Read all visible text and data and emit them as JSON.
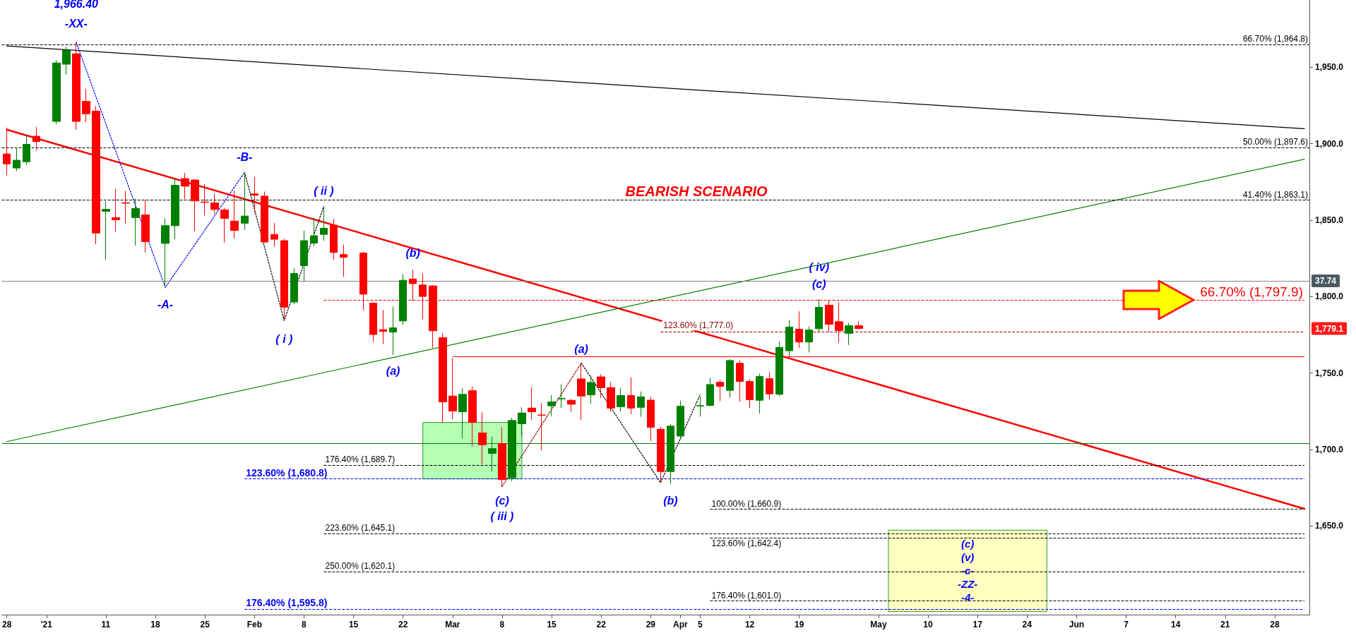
{
  "chart_data": {
    "type": "candlestick",
    "categories": [
      "28",
      null,
      null,
      null,
      "'21",
      null,
      null,
      null,
      null,
      null,
      "11",
      null,
      null,
      null,
      null,
      "18",
      null,
      null,
      null,
      null,
      "25",
      null,
      null,
      null,
      null,
      "Feb",
      null,
      null,
      null,
      null,
      "8",
      null,
      null,
      null,
      null,
      "15",
      null,
      null,
      null,
      null,
      "22",
      null,
      null,
      null,
      null,
      "Mar",
      null,
      null,
      null,
      null,
      "8",
      null,
      null,
      null,
      null,
      "15",
      null,
      null,
      null,
      null,
      "22",
      null,
      null,
      null,
      null,
      "29",
      null,
      null,
      "Apr",
      null,
      "5",
      null,
      null,
      null,
      null,
      "12",
      null,
      null,
      null,
      null,
      "19",
      null,
      null,
      null,
      null,
      null,
      null,
      null,
      "May",
      null,
      null,
      null,
      null,
      "10",
      null,
      null,
      null,
      null,
      "17",
      null,
      null,
      null,
      null,
      "24",
      null,
      null,
      null,
      null,
      "Jun",
      null,
      null,
      null,
      null,
      "7",
      null,
      null,
      null,
      null,
      "14",
      null,
      null,
      null,
      null,
      "21",
      null,
      null,
      null,
      null,
      "28",
      null,
      null,
      null
    ],
    "ohlc": [
      [
        1893.3,
        1910.5,
        1879.3,
        1886.8
      ],
      [
        1884.1,
        1897.6,
        1882.1,
        1889.2
      ],
      [
        1888.2,
        1905.2,
        1886.2,
        1899.6
      ],
      [
        1904.9,
        1911.0,
        1895.8,
        1901.4
      ],
      null,
      [
        1914.6,
        1954.6,
        1912.8,
        1952.8
      ],
      [
        1952.0,
        1963.4,
        1945.2,
        1961.0
      ],
      [
        1958.8,
        1966.4,
        1909.0,
        1914.6
      ],
      [
        1927.7,
        1936.0,
        1914.0,
        1919.6
      ],
      [
        1921.3,
        1924.6,
        1834.2,
        1841.6
      ],
      [
        1855.8,
        1862.3,
        1823.8,
        1857.1
      ],
      [
        1851.7,
        1870.5,
        1842.4,
        1850.3
      ],
      [
        1861.4,
        1869.2,
        1847.9,
        1861.1
      ],
      [
        1851.7,
        1864.1,
        1833.4,
        1857.6
      ],
      [
        1853.5,
        1863.1,
        1828.9,
        1836.0
      ],
      null,
      [
        1834.8,
        1851.2,
        1806.0,
        1846.4
      ],
      [
        1846.4,
        1877.8,
        1837.5,
        1872.8
      ],
      [
        1877.2,
        1880.9,
        1863.8,
        1872.2
      ],
      [
        1876.3,
        1876.8,
        1842.8,
        1862.6
      ],
      [
        1861.9,
        1873.7,
        1853.0,
        1861.6
      ],
      [
        1861.3,
        1867.2,
        1854.0,
        1857.0
      ],
      [
        1856.7,
        1858.0,
        1835.3,
        1851.2
      ],
      [
        1849.4,
        1869.5,
        1838.3,
        1843.3
      ],
      [
        1848.0,
        1881.3,
        1843.6,
        1852.7
      ],
      [
        1867.2,
        1878.3,
        1854.6,
        1866.3
      ],
      [
        1865.7,
        1868.7,
        1835.3,
        1835.7
      ],
      [
        1840.7,
        1848.2,
        1833.0,
        1837.5
      ],
      [
        1836.6,
        1837.8,
        1784.3,
        1793.1
      ],
      [
        1796.5,
        1818.5,
        1795.0,
        1815.2
      ],
      [
        1820.2,
        1843.2,
        1810.2,
        1836.6
      ],
      [
        1835.0,
        1851.7,
        1833.0,
        1839.8
      ],
      [
        1840.7,
        1859.1,
        1836.5,
        1844.7
      ],
      [
        1846.7,
        1850.9,
        1824.3,
        1828.9
      ],
      [
        1827.5,
        1834.0,
        1812.9,
        1825.7
      ],
      null,
      [
        1828.5,
        1829.3,
        1791.2,
        1801.6
      ],
      [
        1795.7,
        1796.3,
        1770.3,
        1775.2
      ],
      [
        1778.4,
        1791.2,
        1769.0,
        1777.3
      ],
      [
        1776.8,
        1793.5,
        1761.8,
        1779.6
      ],
      [
        1784.1,
        1814.8,
        1781.4,
        1810.7
      ],
      [
        1811.5,
        1817.6,
        1797.2,
        1808.5
      ],
      [
        1807.6,
        1815.3,
        1785.0,
        1800.1
      ],
      [
        1807.0,
        1807.5,
        1766.6,
        1777.7
      ],
      [
        1773.2,
        1776.0,
        1717.4,
        1731.2
      ],
      [
        1735.0,
        1759.7,
        1719.8,
        1725.2
      ],
      [
        1724.7,
        1740.2,
        1707.1,
        1736.1
      ],
      [
        1738.5,
        1741.3,
        1701.9,
        1717.7
      ],
      [
        1710.9,
        1724.4,
        1690.2,
        1703.1
      ],
      [
        1697.5,
        1708.4,
        1685.6,
        1700.6
      ],
      [
        1703.9,
        1714.6,
        1675.8,
        1680.4
      ],
      [
        1681.5,
        1720.7,
        1679.4,
        1719.0
      ],
      [
        1716.9,
        1727.6,
        1708.4,
        1723.9
      ],
      [
        1727.1,
        1740.7,
        1719.5,
        1724.7
      ],
      [
        1722.6,
        1730.4,
        1699.5,
        1722.4
      ],
      [
        1728.6,
        1735.6,
        1721.8,
        1731.2
      ],
      [
        1733.1,
        1742.6,
        1727.1,
        1733.3
      ],
      [
        1732.2,
        1733.0,
        1724.7,
        1729.6
      ],
      [
        1746.2,
        1756.5,
        1719.5,
        1735.0
      ],
      [
        1735.8,
        1748.3,
        1729.9,
        1743.9
      ],
      [
        1747.5,
        1749.2,
        1733.7,
        1740.5
      ],
      [
        1740.5,
        1744.2,
        1724.7,
        1727.1
      ],
      [
        1728.0,
        1740.2,
        1724.7,
        1735.3
      ],
      [
        1735.3,
        1747.2,
        1723.1,
        1727.1
      ],
      [
        1727.6,
        1737.9,
        1721.4,
        1734.5
      ],
      [
        1732.3,
        1734.5,
        1705.5,
        1714.5
      ],
      [
        1713.3,
        1714.9,
        1678.3,
        1685.6
      ],
      [
        1685.6,
        1716.6,
        1677.5,
        1715.3
      ],
      [
        1708.8,
        1732.1,
        1706.5,
        1728.3
      ],
      null,
      [
        1728.4,
        1734.5,
        1721.5,
        1728.7
      ],
      [
        1728.8,
        1746.8,
        1728.4,
        1742.5
      ],
      [
        1744.0,
        1745.5,
        1731.6,
        1741.3
      ],
      [
        1738.7,
        1759.2,
        1733.9,
        1758.2
      ],
      [
        1756.4,
        1758.2,
        1731.1,
        1744.5
      ],
      [
        1744.5,
        1746.0,
        1727.0,
        1732.6
      ],
      [
        1732.2,
        1749.7,
        1723.5,
        1747.8
      ],
      [
        1746.3,
        1750.6,
        1732.6,
        1736.4
      ],
      [
        1736.1,
        1770.6,
        1734.9,
        1766.8
      ],
      [
        1764.6,
        1784.8,
        1760.8,
        1780.1
      ],
      [
        1778.7,
        1790.4,
        1766.5,
        1770.3
      ],
      [
        1770.3,
        1780.5,
        1763.5,
        1778.2
      ],
      [
        1779.0,
        1798.3,
        1777.0,
        1793.0
      ],
      [
        1794.4,
        1797.9,
        1777.2,
        1781.9
      ],
      [
        1783.6,
        1796.2,
        1769.9,
        1777.8
      ],
      [
        1776.0,
        1782.8,
        1768.4,
        1781.0
      ],
      [
        1781.0,
        1783.9,
        1778.6,
        1779.1
      ],
      null,
      null,
      null,
      null,
      null,
      null,
      null,
      null,
      null,
      null,
      null,
      null,
      null,
      null,
      null,
      null,
      null,
      null,
      null,
      null,
      null,
      null,
      null,
      null,
      null,
      null,
      null,
      null,
      null,
      null,
      null,
      null,
      null,
      null,
      null,
      null,
      null,
      null,
      null,
      null,
      null,
      null,
      null,
      null,
      null
    ],
    "colors": [
      "#ff0000",
      "#008000",
      "#008000",
      "#ff0000",
      null,
      "#008000",
      "#008000",
      "#ff0000",
      "#ff0000",
      "#ff0000",
      "#008000",
      "#ff0000",
      "#ff0000",
      "#008000",
      "#ff0000",
      null,
      "#008000",
      "#008000",
      "#ff0000",
      "#ff0000",
      "#ff0000",
      "#ff0000",
      "#ff0000",
      "#ff0000",
      "#008000",
      "#ff0000",
      "#ff0000",
      "#ff0000",
      "#ff0000",
      "#008000",
      "#008000",
      "#008000",
      "#008000",
      "#ff0000",
      "#ff0000",
      null,
      "#ff0000",
      "#ff0000",
      "#ff0000",
      "#008000",
      "#008000",
      "#ff0000",
      "#ff0000",
      "#ff0000",
      "#ff0000",
      "#ff0000",
      "#008000",
      "#ff0000",
      "#ff0000",
      "#008000",
      "#ff0000",
      "#008000",
      "#008000",
      "#ff0000",
      "#ff0000",
      "#008000",
      "#008000",
      "#ff0000",
      "#ff0000",
      "#008000",
      "#ff0000",
      "#ff0000",
      "#008000",
      "#ff0000",
      "#008000",
      "#ff0000",
      "#ff0000",
      "#008000",
      "#008000",
      null,
      "#008000",
      "#008000",
      "#ff0000",
      "#008000",
      "#ff0000",
      "#ff0000",
      "#008000",
      "#ff0000",
      "#008000",
      "#008000",
      "#ff0000",
      "#008000",
      "#008000",
      "#ff0000",
      "#ff0000",
      "#008000",
      "#ff0000",
      null,
      null,
      null,
      null,
      null,
      null,
      null,
      null,
      null,
      null,
      null,
      null,
      null,
      null,
      null,
      null,
      null,
      null,
      null,
      null,
      null,
      null,
      null,
      null,
      null,
      null,
      null,
      null,
      null,
      null,
      null,
      null,
      null,
      null,
      null,
      null,
      null,
      null,
      null,
      null,
      null,
      null,
      null,
      null,
      null
    ],
    "series": [
      {
        "type": "line",
        "color": "#000000",
        "line_style": "solid",
        "values": [
          1963.9,
          null,
          null,
          null,
          null,
          null,
          null,
          null,
          null,
          null,
          null,
          null,
          null,
          null,
          null,
          null,
          null,
          null,
          null,
          null,
          null,
          null,
          null,
          null,
          null,
          null,
          null,
          null,
          null,
          null,
          null,
          null,
          null,
          null,
          null,
          null,
          null,
          null,
          null,
          null,
          null,
          null,
          null,
          null,
          null,
          null,
          null,
          null,
          null,
          null,
          null,
          null,
          null,
          null,
          null,
          null,
          null,
          null,
          null,
          null,
          null,
          null,
          null,
          null,
          null,
          null,
          null,
          null,
          null,
          null,
          null,
          null,
          null,
          null,
          null,
          null,
          null,
          null,
          null,
          null,
          null,
          null,
          null,
          null,
          null,
          null,
          null,
          null,
          null,
          null,
          null,
          null,
          null,
          null,
          null,
          null,
          null,
          null,
          null,
          null,
          null,
          null,
          null,
          null,
          null,
          null,
          null,
          null,
          null,
          null,
          null,
          null,
          null,
          null,
          null,
          null,
          null,
          null,
          null,
          null,
          null,
          null,
          null,
          null,
          null,
          null,
          null,
          null,
          null,
          null,
          null,
          1909.8
        ]
      },
      {
        "type": "line",
        "color": "#ff0000",
        "line_style": "solid",
        "values": [
          1909.2,
          null,
          null,
          null,
          null,
          null,
          null,
          null,
          null,
          null,
          null,
          null,
          null,
          null,
          null,
          null,
          null,
          null,
          null,
          null,
          null,
          null,
          null,
          null,
          null,
          null,
          null,
          null,
          null,
          null,
          null,
          null,
          null,
          null,
          null,
          null,
          null,
          null,
          null,
          null,
          null,
          null,
          null,
          null,
          null,
          null,
          null,
          null,
          null,
          null,
          null,
          null,
          null,
          null,
          null,
          null,
          null,
          null,
          null,
          null,
          null,
          null,
          null,
          null,
          null,
          null,
          null,
          null,
          null,
          null,
          null,
          null,
          null,
          null,
          null,
          null,
          null,
          null,
          null,
          null,
          null,
          null,
          null,
          null,
          null,
          null,
          null,
          null,
          null,
          null,
          null,
          null,
          null,
          null,
          null,
          null,
          null,
          null,
          null,
          null,
          null,
          null,
          null,
          null,
          null,
          null,
          null,
          null,
          null,
          null,
          null,
          null,
          null,
          null,
          null,
          null,
          null,
          null,
          null,
          null,
          null,
          null,
          null,
          null,
          null,
          null,
          null,
          null,
          null,
          null,
          null,
          1661.2
        ]
      },
      {
        "type": "line",
        "color": "#008000",
        "line_style": "solid",
        "values": [
          1705.2,
          null,
          null,
          null,
          null,
          null,
          null,
          null,
          null,
          null,
          null,
          null,
          null,
          null,
          null,
          null,
          null,
          null,
          null,
          null,
          null,
          null,
          null,
          null,
          null,
          null,
          null,
          null,
          null,
          null,
          null,
          null,
          null,
          null,
          null,
          null,
          null,
          null,
          null,
          null,
          null,
          null,
          null,
          null,
          null,
          null,
          null,
          null,
          null,
          null,
          null,
          null,
          null,
          null,
          null,
          null,
          null,
          null,
          null,
          null,
          null,
          null,
          null,
          null,
          null,
          null,
          null,
          null,
          null,
          null,
          null,
          null,
          null,
          null,
          null,
          null,
          null,
          null,
          null,
          null,
          null,
          null,
          null,
          null,
          null,
          null,
          null,
          null,
          null,
          null,
          null,
          null,
          null,
          null,
          null,
          null,
          null,
          null,
          null,
          null,
          null,
          null,
          null,
          null,
          null,
          null,
          null,
          null,
          null,
          null,
          null,
          null,
          null,
          null,
          null,
          null,
          null,
          null,
          null,
          null,
          null,
          null,
          null,
          null,
          null,
          null,
          null,
          null,
          null,
          null,
          null,
          1889.9
        ]
      },
      {
        "type": "line",
        "color": "#0000ff",
        "line_style": "dotted",
        "values": [
          null,
          null,
          null,
          null,
          null,
          null,
          null,
          1966.4,
          null,
          null,
          null,
          null,
          null,
          null,
          null,
          null,
          1806.0,
          null,
          null,
          null,
          null,
          null,
          null,
          null,
          1881.3,
          null,
          null,
          null,
          null,
          null,
          null,
          null,
          null,
          null,
          null,
          null,
          null,
          null,
          null,
          null,
          null,
          null,
          null,
          null,
          null,
          null,
          null,
          null,
          null,
          null,
          null,
          null,
          null,
          null,
          null,
          null,
          null,
          null,
          null,
          null,
          null,
          null,
          null,
          null,
          null,
          null,
          null,
          null,
          null,
          null,
          null,
          null,
          null,
          null,
          null,
          null,
          null,
          null,
          null,
          null,
          null,
          null,
          null,
          null,
          null,
          null,
          null,
          null,
          null,
          null,
          null,
          null,
          null,
          null,
          null,
          null,
          null,
          null,
          null,
          null,
          null,
          null,
          null,
          null,
          null,
          null,
          null,
          null,
          null,
          null,
          null,
          null,
          null,
          null,
          null,
          null,
          null,
          null,
          null,
          null,
          null,
          null,
          null,
          null,
          null,
          null,
          null,
          null,
          null,
          null,
          null,
          null
        ]
      },
      {
        "type": "line",
        "color": "#000000",
        "line_style": "dotted",
        "values": [
          null,
          null,
          null,
          null,
          null,
          null,
          null,
          null,
          null,
          null,
          null,
          null,
          null,
          null,
          null,
          null,
          null,
          null,
          null,
          null,
          null,
          null,
          null,
          null,
          1881.3,
          null,
          null,
          null,
          1784.3,
          null,
          null,
          null,
          1859.1,
          null,
          null,
          null,
          null,
          null,
          null,
          null,
          null,
          null,
          null,
          null,
          null,
          null,
          null,
          null,
          null,
          null,
          null,
          null,
          null,
          null,
          null,
          null,
          null,
          null,
          null,
          null,
          null,
          null,
          null,
          null,
          null,
          null,
          null,
          null,
          null,
          null,
          null,
          null,
          null,
          null,
          null,
          null,
          null,
          null,
          null,
          null,
          null,
          null,
          null,
          null,
          null,
          null,
          null,
          null,
          null,
          null,
          null,
          null,
          null,
          null,
          null,
          null,
          null,
          null,
          null,
          null,
          null,
          null,
          null,
          null,
          null,
          null,
          null,
          null,
          null,
          null,
          null,
          null,
          null,
          null,
          null,
          null,
          null,
          null,
          null,
          null,
          null,
          null,
          null,
          null,
          null,
          null,
          null,
          null,
          null,
          null,
          null,
          null
        ]
      },
      {
        "type": "line",
        "color": "#8b0000",
        "line_style": "dotted",
        "values": [
          null,
          null,
          null,
          null,
          null,
          null,
          null,
          null,
          null,
          null,
          null,
          null,
          null,
          null,
          null,
          null,
          null,
          null,
          null,
          null,
          null,
          null,
          null,
          null,
          null,
          null,
          null,
          null,
          null,
          null,
          null,
          null,
          null,
          null,
          null,
          null,
          null,
          null,
          null,
          null,
          null,
          null,
          null,
          null,
          null,
          null,
          null,
          null,
          null,
          null,
          1675.8,
          null,
          null,
          null,
          null,
          null,
          null,
          null,
          1756.5,
          null,
          null,
          null,
          null,
          null,
          null,
          null,
          null,
          null,
          null,
          null,
          null,
          null,
          null,
          null,
          null,
          null,
          null,
          null,
          null,
          null,
          null,
          null,
          null,
          null,
          null,
          null,
          null,
          null,
          null,
          null,
          null,
          null,
          null,
          null,
          null,
          null,
          null,
          null,
          null,
          null,
          null,
          null,
          null,
          null,
          null,
          null,
          null,
          null,
          null,
          null,
          null,
          null,
          null,
          null,
          null,
          null,
          null,
          null,
          null,
          null,
          null,
          null,
          null,
          null,
          null,
          null,
          null,
          null,
          null,
          null,
          null,
          null
        ]
      },
      {
        "type": "line",
        "color": "#000000",
        "line_style": "dotted",
        "values": [
          null,
          null,
          null,
          null,
          null,
          null,
          null,
          null,
          null,
          null,
          null,
          null,
          null,
          null,
          null,
          null,
          null,
          null,
          null,
          null,
          null,
          null,
          null,
          null,
          null,
          null,
          null,
          null,
          null,
          null,
          null,
          null,
          null,
          null,
          null,
          null,
          null,
          null,
          null,
          null,
          null,
          null,
          null,
          null,
          null,
          null,
          null,
          null,
          null,
          null,
          null,
          null,
          null,
          null,
          null,
          null,
          null,
          null,
          1756.5,
          null,
          null,
          null,
          null,
          null,
          null,
          null,
          1678.3,
          null,
          null,
          null,
          1736.0,
          null,
          null,
          null,
          null,
          null,
          null,
          null,
          null,
          null,
          null,
          null,
          null,
          null,
          null,
          null,
          null,
          null,
          null,
          null,
          null,
          null,
          null,
          null,
          null,
          null,
          null,
          null,
          null,
          null,
          null,
          null,
          null,
          null,
          null,
          null,
          null,
          null,
          null,
          null,
          null,
          null,
          null,
          null,
          null,
          null,
          null,
          null,
          null,
          null,
          null,
          null,
          null,
          null,
          null,
          null,
          null,
          null,
          null,
          null,
          null,
          null
        ]
      }
    ],
    "ylim": [
      1592,
      1994
    ],
    "yticks": [
      {
        "value": 1650,
        "label": "1,650.0"
      },
      {
        "value": 1700,
        "label": "1,700.0"
      },
      {
        "value": 1750,
        "label": "1,750.0"
      },
      {
        "value": 1800,
        "label": "1,800.0"
      },
      {
        "value": 1850,
        "label": "1,850.0"
      },
      {
        "value": 1900,
        "label": "1,900.0"
      },
      {
        "value": 1950,
        "label": "1,950.0"
      }
    ],
    "ref_lines": [
      {
        "axis": "y",
        "value": 1964.8,
        "label": "66.70% (1,964.8)",
        "color": "#000000",
        "line_style": "dashed"
      },
      {
        "axis": "y",
        "value": 1897.6,
        "label": "50.00% (1,897.6)",
        "color": "#000000",
        "line_style": "dashed"
      },
      {
        "axis": "y",
        "value": 1863.1,
        "label": "41.40% (1,863.1)",
        "color": "#000000",
        "line_style": "dashed"
      },
      {
        "axis": "y",
        "value": 1797.9,
        "label": "66.70% (1,797.9)",
        "color": "#ff0000",
        "line_style": "dashed"
      },
      {
        "axis": "y",
        "value": 1777.0,
        "label": "123.60% (1,777.0)",
        "color": "#8b0000",
        "line_style": "dashed"
      },
      {
        "axis": "y",
        "value": 1689.7,
        "label": "176.40% (1,689.7)",
        "color": "#000000",
        "line_style": "dashed"
      },
      {
        "axis": "y",
        "value": 1680.8,
        "label": "123.60% (1,680.8)",
        "color": "#0000ff",
        "line_style": "dashed"
      },
      {
        "axis": "y",
        "value": 1660.9,
        "label": "100.00% (1,660.9)",
        "color": "#000000",
        "line_style": "dashed"
      },
      {
        "axis": "y",
        "value": 1645.1,
        "label": "223.60% (1,645.1)",
        "color": "#000000",
        "line_style": "dashed"
      },
      {
        "axis": "y",
        "value": 1642.4,
        "label": "123.60% (1,642.4)",
        "color": "#000000",
        "line_style": "dashed"
      },
      {
        "axis": "y",
        "value": 1620.1,
        "label": "250.00% (1,620.1)",
        "color": "#000000",
        "line_style": "dashed"
      },
      {
        "axis": "y",
        "value": 1601.0,
        "label": "176.40% (1,601.0)",
        "color": "#000000",
        "line_style": "dashed"
      },
      {
        "axis": "y",
        "value": 1595.8,
        "label": "176.40% (1,595.8)",
        "color": "#0000ff",
        "line_style": "dashed"
      },
      {
        "axis": "y",
        "value": 1810.3,
        "color": "#808080",
        "line_style": "solid"
      },
      {
        "axis": "y",
        "value": 1760.6,
        "color": "#ff0000",
        "line_style": "solid"
      },
      {
        "axis": "y",
        "value": 1704.0,
        "color": "#008000",
        "line_style": "solid"
      }
    ],
    "bands": [
      {
        "axis": "y",
        "from": 1680.8,
        "to": 1717.7,
        "color": "#b3ffb3"
      },
      {
        "axis": "y",
        "from": 1594,
        "to": 1647.3,
        "color": "#ffffc0",
        "label": "(c)\n(v)\n-c-\n-ZZ-\n-4-"
      }
    ],
    "annotations": [
      "1,966.40",
      "-XX-",
      "-A-",
      "-B-",
      "( i )",
      "( ii )",
      "(a)",
      "(b)",
      "(c)",
      "( iii )",
      "(a)",
      "(b)",
      "(c)",
      "( iv)",
      "BEARISH SCENARIO",
      "37.74",
      "1,779.1"
    ]
  }
}
